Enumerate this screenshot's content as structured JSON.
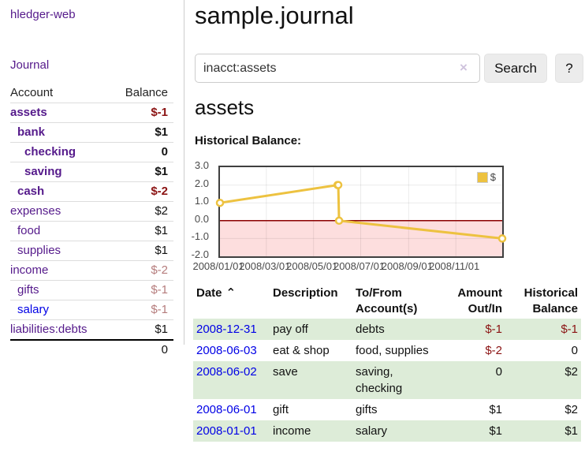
{
  "sidebar": {
    "app_title": "hledger-web",
    "journal_link": "Journal",
    "accounts_table": {
      "headers": {
        "account": "Account",
        "balance": "Balance"
      },
      "rows": [
        {
          "name": "assets",
          "depth": 1,
          "bold": true,
          "balance": "$-1",
          "balance_class": "neg",
          "link_class": ""
        },
        {
          "name": "bank",
          "depth": 2,
          "bold": true,
          "balance": "$1",
          "balance_class": "",
          "link_class": ""
        },
        {
          "name": "checking",
          "depth": 3,
          "bold": true,
          "balance": "0",
          "balance_class": "",
          "link_class": ""
        },
        {
          "name": "saving",
          "depth": 3,
          "bold": true,
          "balance": "$1",
          "balance_class": "",
          "link_class": ""
        },
        {
          "name": "cash",
          "depth": 2,
          "bold": true,
          "balance": "$-2",
          "balance_class": "neg",
          "link_class": ""
        },
        {
          "name": "expenses",
          "depth": 1,
          "bold": false,
          "balance": "$2",
          "balance_class": "",
          "link_class": ""
        },
        {
          "name": "food",
          "depth": 2,
          "bold": false,
          "balance": "$1",
          "balance_class": "",
          "link_class": ""
        },
        {
          "name": "supplies",
          "depth": 2,
          "bold": false,
          "balance": "$1",
          "balance_class": "",
          "link_class": ""
        },
        {
          "name": "income",
          "depth": 1,
          "bold": false,
          "balance": "$-2",
          "balance_class": "neg-muted",
          "link_class": ""
        },
        {
          "name": "gifts",
          "depth": 2,
          "bold": false,
          "balance": "$-1",
          "balance_class": "neg-muted",
          "link_class": ""
        },
        {
          "name": "salary",
          "depth": 2,
          "bold": false,
          "balance": "$-1",
          "balance_class": "neg-muted",
          "link_class": "unvisited"
        },
        {
          "name": "liabilities:debts",
          "depth": 1,
          "bold": false,
          "balance": "$1",
          "balance_class": "",
          "link_class": ""
        }
      ],
      "total": "0"
    }
  },
  "main": {
    "title": "sample.journal",
    "search": {
      "value": "inacct:assets",
      "clear_icon": "×",
      "search_label": "Search",
      "help_label": "?"
    },
    "account_heading": "assets",
    "chart_label": "Historical Balance:",
    "register_table": {
      "headers": {
        "date": "Date",
        "description": "Description",
        "accounts": "To/From Account(s)",
        "amount": "Amount Out/In",
        "balance": "Historical Balance"
      },
      "sort_arrow": "⌃",
      "rows": [
        {
          "date": "2008-12-31",
          "description": "pay off",
          "accounts": "debts",
          "amount": "$-1",
          "amount_class": "neg",
          "balance": "$-1",
          "balance_class": "neg"
        },
        {
          "date": "2008-06-03",
          "description": "eat & shop",
          "accounts": "food, supplies",
          "amount": "$-2",
          "amount_class": "neg",
          "balance": "0",
          "balance_class": ""
        },
        {
          "date": "2008-06-02",
          "description": "save",
          "accounts": "saving, checking",
          "amount": "0",
          "amount_class": "",
          "balance": "$2",
          "balance_class": ""
        },
        {
          "date": "2008-06-01",
          "description": "gift",
          "accounts": "gifts",
          "amount": "$1",
          "amount_class": "",
          "balance": "$2",
          "balance_class": ""
        },
        {
          "date": "2008-01-01",
          "description": "income",
          "accounts": "salary",
          "amount": "$1",
          "amount_class": "",
          "balance": "$1",
          "balance_class": ""
        }
      ]
    }
  },
  "chart_data": {
    "type": "line",
    "title": "Historical Balance:",
    "x_ticks": [
      "2008/01/01",
      "2008/03/01",
      "2008/05/01",
      "2008/07/01",
      "2008/09/01",
      "2008/11/01"
    ],
    "y_ticks": [
      "3.0",
      "2.0",
      "1.0",
      "0.0",
      "-1.0",
      "-2.0"
    ],
    "ylim": [
      -2,
      3
    ],
    "xmin": "2008-01-01",
    "xmax": "2008-12-31",
    "series": [
      {
        "name": "$",
        "color": "#edc240",
        "points": [
          [
            "2008-01-01",
            1
          ],
          [
            "2008-06-01",
            2
          ],
          [
            "2008-06-02",
            2
          ],
          [
            "2008-06-03",
            0
          ],
          [
            "2008-12-31",
            -1
          ]
        ]
      }
    ],
    "legend_position": "top-right",
    "grid": true,
    "negative_region_color": "#fddede",
    "zero_line_color": "#8b0000"
  },
  "colors": {
    "link_visited_purple": "#551a8b",
    "link_blue": "#0000e6",
    "negative_amount": "#8b1313",
    "negative_amount_muted": "#b57c7c",
    "row_stripe_green": "#ddecd8",
    "chart_series_gold": "#edc240",
    "chart_negative_region_pink": "#fddede",
    "chart_zero_line_red": "#8b0000",
    "button_gray": "#ececec"
  }
}
